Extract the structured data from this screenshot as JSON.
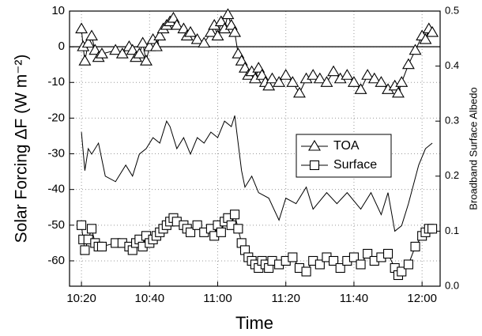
{
  "chart_data": {
    "type": "line",
    "xlabel": "Time",
    "ylabel": "Solar Forcing ΔF (W m⁻²)",
    "y2label": "Broadband Surface Albedo",
    "xlim": [
      616.5,
      725.3
    ],
    "xticks": [
      {
        "value": 620,
        "label": "10:20"
      },
      {
        "value": 640,
        "label": "10:40"
      },
      {
        "value": 660,
        "label": "11:00"
      },
      {
        "value": 680,
        "label": "11:20"
      },
      {
        "value": 700,
        "label": "11:40"
      },
      {
        "value": 720,
        "label": "12:00"
      }
    ],
    "ylim": [
      -67.1,
      10
    ],
    "yticks": [
      10,
      0,
      -10,
      -20,
      -30,
      -40,
      -50,
      -60
    ],
    "y2lim": [
      0,
      0.5
    ],
    "y2ticks": [
      {
        "value": 0,
        "label": "0.0"
      },
      0.1,
      0.2,
      0.3,
      0.4,
      0.5
    ],
    "grid": true,
    "hlines": [
      0
    ],
    "legend": "center right",
    "series": [
      {
        "name": "TOA",
        "color": "#000000",
        "marker": "triangle",
        "x": [
          620,
          620.5,
          621,
          622,
          623,
          624,
          625,
          626,
          630,
          632,
          634,
          635,
          636,
          637,
          638,
          639,
          640,
          641,
          642,
          643,
          644,
          645,
          646,
          647,
          648,
          650,
          651,
          652,
          654,
          656,
          658,
          659,
          660,
          661,
          662,
          663,
          664,
          665,
          666,
          667,
          668,
          669,
          670,
          671,
          672,
          673,
          674,
          675,
          676,
          678,
          680,
          682,
          684,
          686,
          688,
          690,
          692,
          694,
          696,
          698,
          700,
          702,
          704,
          706,
          708,
          710,
          712,
          713,
          714,
          716,
          718,
          720,
          721,
          722,
          723
        ],
        "values": [
          5,
          0,
          -4,
          1,
          3,
          -1,
          -3,
          -2,
          -1,
          -2,
          0,
          -1,
          -3,
          -2,
          1,
          -4,
          0,
          2,
          0,
          3,
          5,
          6,
          7,
          8,
          6,
          5,
          3,
          4,
          2,
          1,
          4,
          6,
          3,
          7,
          5,
          9,
          6,
          4,
          -2,
          -4,
          -6,
          -8,
          -7,
          -9,
          -6,
          -8,
          -10,
          -11,
          -9,
          -10,
          -8,
          -10,
          -13,
          -9,
          -8,
          -9,
          -10,
          -7,
          -9,
          -8,
          -10,
          -12,
          -8,
          -9,
          -10,
          -12,
          -11,
          -13,
          -10,
          -5,
          -1,
          3,
          2,
          5,
          4
        ]
      },
      {
        "name": "Surface",
        "color": "#000000",
        "marker": "square",
        "x": [
          620,
          620.5,
          621,
          622,
          623,
          624,
          625,
          626,
          630,
          632,
          634,
          635,
          636,
          637,
          638,
          639,
          640,
          641,
          642,
          643,
          644,
          645,
          646,
          647,
          648,
          650,
          651,
          652,
          654,
          656,
          658,
          659,
          660,
          661,
          662,
          663,
          664,
          665,
          666,
          667,
          668,
          669,
          670,
          671,
          672,
          673,
          674,
          675,
          676,
          678,
          680,
          682,
          684,
          686,
          688,
          690,
          692,
          694,
          696,
          698,
          700,
          702,
          704,
          706,
          708,
          710,
          712,
          713,
          714,
          716,
          718,
          720,
          721,
          722,
          723
        ],
        "values": [
          -50,
          -54,
          -57,
          -54,
          -51,
          -55,
          -56,
          -56,
          -55,
          -55,
          -56,
          -57,
          -55,
          -54,
          -56,
          -53,
          -55,
          -54,
          -53,
          -52,
          -51,
          -50,
          -49,
          -48,
          -49,
          -50,
          -51,
          -52,
          -50,
          -52,
          -51,
          -53,
          -50,
          -52,
          -49,
          -48,
          -50,
          -47,
          -51,
          -55,
          -57,
          -59,
          -60,
          -61,
          -62,
          -60,
          -61,
          -62,
          -60,
          -61,
          -60,
          -59,
          -62,
          -63,
          -60,
          -61,
          -59,
          -60,
          -62,
          -60,
          -59,
          -61,
          -58,
          -60,
          -59,
          -58,
          -62,
          -64,
          -63,
          -61,
          -56,
          -53,
          -52,
          -51,
          -51
        ]
      },
      {
        "color": "#000000",
        "marker": "none",
        "axis": "y2",
        "x": [
          620,
          621,
          622,
          623,
          625,
          627,
          630,
          633,
          635,
          637,
          639,
          641,
          643,
          645,
          646,
          648,
          650,
          652,
          654,
          656,
          658,
          660,
          662,
          664,
          665,
          667,
          668,
          670,
          672,
          675,
          678,
          680,
          683,
          686,
          688,
          692,
          695,
          698,
          702,
          705,
          708,
          710,
          712,
          714,
          716,
          719,
          721,
          723
        ],
        "values": [
          0.28,
          0.21,
          0.25,
          0.24,
          0.26,
          0.2,
          0.19,
          0.22,
          0.2,
          0.24,
          0.25,
          0.27,
          0.26,
          0.3,
          0.29,
          0.25,
          0.27,
          0.24,
          0.27,
          0.26,
          0.28,
          0.27,
          0.3,
          0.29,
          0.31,
          0.21,
          0.18,
          0.2,
          0.17,
          0.16,
          0.12,
          0.16,
          0.15,
          0.18,
          0.14,
          0.17,
          0.15,
          0.17,
          0.14,
          0.17,
          0.13,
          0.17,
          0.1,
          0.11,
          0.15,
          0.22,
          0.25,
          0.26
        ]
      }
    ]
  }
}
